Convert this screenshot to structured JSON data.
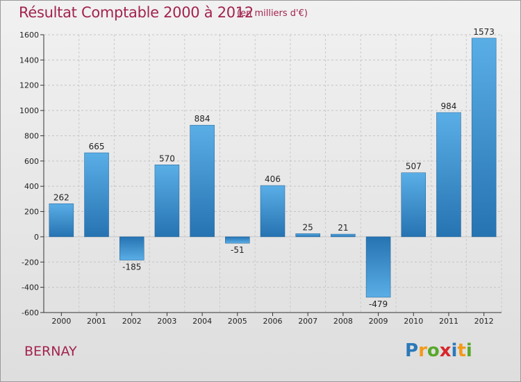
{
  "header": {
    "title": "Résultat Comptable 2000 à 2012",
    "unit": "(en milliers d'€)"
  },
  "footer": {
    "place": "BERNAY",
    "logo": [
      "P",
      "r",
      "o",
      "x",
      "i",
      "t",
      "i"
    ]
  },
  "colors": {
    "title": "#a2234e",
    "bar_light": "#5aaee6",
    "bar_dark": "#2673b2"
  },
  "chart_data": {
    "type": "bar",
    "title": "Résultat Comptable 2000 à 2012",
    "ylabel": "(en milliers d'€)",
    "xlabel": "",
    "categories": [
      "2000",
      "2001",
      "2002",
      "2003",
      "2004",
      "2005",
      "2006",
      "2007",
      "2008",
      "2009",
      "2010",
      "2011",
      "2012"
    ],
    "values": [
      262,
      665,
      -185,
      570,
      884,
      -51,
      406,
      25,
      21,
      -479,
      507,
      984,
      1573
    ],
    "value_labels": [
      "262",
      "665",
      "-185",
      "570",
      "884",
      "-51",
      "406",
      "25",
      "21",
      "-479",
      "507",
      "984",
      "1573"
    ],
    "ylim": [
      -600,
      1600
    ],
    "yticks": [
      -600,
      -400,
      -200,
      0,
      200,
      400,
      600,
      800,
      1000,
      1200,
      1400,
      1600
    ],
    "grid": true
  }
}
